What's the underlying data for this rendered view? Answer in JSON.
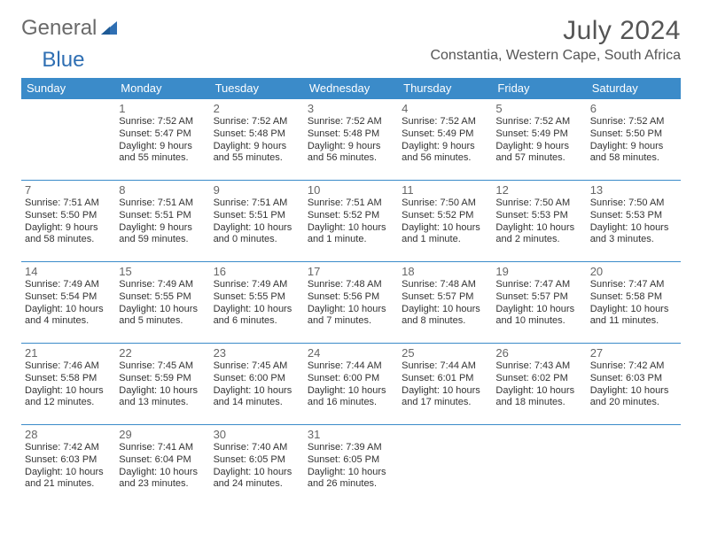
{
  "brand": {
    "part1": "General",
    "part2": "Blue"
  },
  "title": "July 2024",
  "location": "Constantia, Western Cape, South Africa",
  "colors": {
    "header_bg": "#3b8bc9",
    "header_text": "#ffffff",
    "cell_border": "#3b8bc9",
    "logo_gray": "#6a6a6a",
    "logo_blue": "#2f6fb3"
  },
  "day_headers": [
    "Sunday",
    "Monday",
    "Tuesday",
    "Wednesday",
    "Thursday",
    "Friday",
    "Saturday"
  ],
  "weeks": [
    [
      {
        "num": "",
        "text": ""
      },
      {
        "num": "1",
        "text": "Sunrise: 7:52 AM\nSunset: 5:47 PM\nDaylight: 9 hours and 55 minutes."
      },
      {
        "num": "2",
        "text": "Sunrise: 7:52 AM\nSunset: 5:48 PM\nDaylight: 9 hours and 55 minutes."
      },
      {
        "num": "3",
        "text": "Sunrise: 7:52 AM\nSunset: 5:48 PM\nDaylight: 9 hours and 56 minutes."
      },
      {
        "num": "4",
        "text": "Sunrise: 7:52 AM\nSunset: 5:49 PM\nDaylight: 9 hours and 56 minutes."
      },
      {
        "num": "5",
        "text": "Sunrise: 7:52 AM\nSunset: 5:49 PM\nDaylight: 9 hours and 57 minutes."
      },
      {
        "num": "6",
        "text": "Sunrise: 7:52 AM\nSunset: 5:50 PM\nDaylight: 9 hours and 58 minutes."
      }
    ],
    [
      {
        "num": "7",
        "text": "Sunrise: 7:51 AM\nSunset: 5:50 PM\nDaylight: 9 hours and 58 minutes."
      },
      {
        "num": "8",
        "text": "Sunrise: 7:51 AM\nSunset: 5:51 PM\nDaylight: 9 hours and 59 minutes."
      },
      {
        "num": "9",
        "text": "Sunrise: 7:51 AM\nSunset: 5:51 PM\nDaylight: 10 hours and 0 minutes."
      },
      {
        "num": "10",
        "text": "Sunrise: 7:51 AM\nSunset: 5:52 PM\nDaylight: 10 hours and 1 minute."
      },
      {
        "num": "11",
        "text": "Sunrise: 7:50 AM\nSunset: 5:52 PM\nDaylight: 10 hours and 1 minute."
      },
      {
        "num": "12",
        "text": "Sunrise: 7:50 AM\nSunset: 5:53 PM\nDaylight: 10 hours and 2 minutes."
      },
      {
        "num": "13",
        "text": "Sunrise: 7:50 AM\nSunset: 5:53 PM\nDaylight: 10 hours and 3 minutes."
      }
    ],
    [
      {
        "num": "14",
        "text": "Sunrise: 7:49 AM\nSunset: 5:54 PM\nDaylight: 10 hours and 4 minutes."
      },
      {
        "num": "15",
        "text": "Sunrise: 7:49 AM\nSunset: 5:55 PM\nDaylight: 10 hours and 5 minutes."
      },
      {
        "num": "16",
        "text": "Sunrise: 7:49 AM\nSunset: 5:55 PM\nDaylight: 10 hours and 6 minutes."
      },
      {
        "num": "17",
        "text": "Sunrise: 7:48 AM\nSunset: 5:56 PM\nDaylight: 10 hours and 7 minutes."
      },
      {
        "num": "18",
        "text": "Sunrise: 7:48 AM\nSunset: 5:57 PM\nDaylight: 10 hours and 8 minutes."
      },
      {
        "num": "19",
        "text": "Sunrise: 7:47 AM\nSunset: 5:57 PM\nDaylight: 10 hours and 10 minutes."
      },
      {
        "num": "20",
        "text": "Sunrise: 7:47 AM\nSunset: 5:58 PM\nDaylight: 10 hours and 11 minutes."
      }
    ],
    [
      {
        "num": "21",
        "text": "Sunrise: 7:46 AM\nSunset: 5:58 PM\nDaylight: 10 hours and 12 minutes."
      },
      {
        "num": "22",
        "text": "Sunrise: 7:45 AM\nSunset: 5:59 PM\nDaylight: 10 hours and 13 minutes."
      },
      {
        "num": "23",
        "text": "Sunrise: 7:45 AM\nSunset: 6:00 PM\nDaylight: 10 hours and 14 minutes."
      },
      {
        "num": "24",
        "text": "Sunrise: 7:44 AM\nSunset: 6:00 PM\nDaylight: 10 hours and 16 minutes."
      },
      {
        "num": "25",
        "text": "Sunrise: 7:44 AM\nSunset: 6:01 PM\nDaylight: 10 hours and 17 minutes."
      },
      {
        "num": "26",
        "text": "Sunrise: 7:43 AM\nSunset: 6:02 PM\nDaylight: 10 hours and 18 minutes."
      },
      {
        "num": "27",
        "text": "Sunrise: 7:42 AM\nSunset: 6:03 PM\nDaylight: 10 hours and 20 minutes."
      }
    ],
    [
      {
        "num": "28",
        "text": "Sunrise: 7:42 AM\nSunset: 6:03 PM\nDaylight: 10 hours and 21 minutes."
      },
      {
        "num": "29",
        "text": "Sunrise: 7:41 AM\nSunset: 6:04 PM\nDaylight: 10 hours and 23 minutes."
      },
      {
        "num": "30",
        "text": "Sunrise: 7:40 AM\nSunset: 6:05 PM\nDaylight: 10 hours and 24 minutes."
      },
      {
        "num": "31",
        "text": "Sunrise: 7:39 AM\nSunset: 6:05 PM\nDaylight: 10 hours and 26 minutes."
      },
      {
        "num": "",
        "text": ""
      },
      {
        "num": "",
        "text": ""
      },
      {
        "num": "",
        "text": ""
      }
    ]
  ]
}
